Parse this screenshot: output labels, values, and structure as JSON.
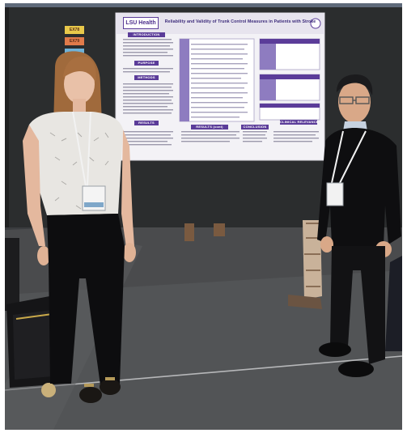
{
  "scene": {
    "description_colors": {
      "floor": "#4a4b4d",
      "board": "#2b2d2e",
      "poster": "#f3f2f6",
      "accent_purple": "#5b3c99"
    }
  },
  "poster": {
    "logo": "LSU Health",
    "title": "Reliability and Validity of Trunk Control Measures in Patients with Stroke",
    "sections": {
      "introduction": "INTRODUCTION",
      "purpose": "PURPOSE",
      "methods": "METHODS",
      "results": "RESULTS",
      "results_cont": "RESULTS (cont)",
      "conclusion": "CONCLUSION",
      "clinical": "CLINICAL RELEVANCE"
    }
  },
  "board_tags": [
    {
      "label": "EX78",
      "color": "#e8c84a"
    },
    {
      "label": "EX79",
      "color": "#e07a4a"
    },
    {
      "label": "",
      "color": "#6fb2d8"
    }
  ]
}
